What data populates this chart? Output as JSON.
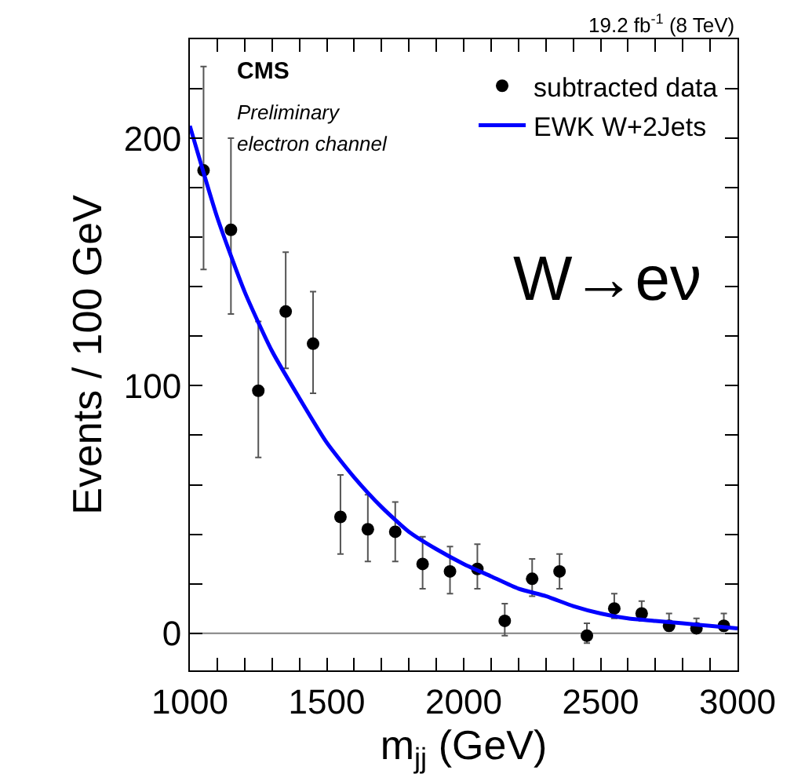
{
  "chart_data": {
    "type": "scatter",
    "xlabel": "m$_{jj}$ (GeV)",
    "ylabel": "Events / 100 GeV",
    "annotations": [
      "19.2 fb$^{-1}$ (8 TeV)",
      "CMS",
      "Preliminary",
      "electron channel",
      "W→eν"
    ],
    "xlim": [
      1000,
      3000
    ],
    "ylim": [
      -15,
      240
    ],
    "xticks": [
      1000,
      {
        "value": 1100,
        "label": null
      },
      {
        "value": 1200,
        "label": null
      },
      {
        "value": 1300,
        "label": null
      },
      {
        "value": 1400,
        "label": null
      },
      1500,
      {
        "value": 1600,
        "label": null
      },
      {
        "value": 1700,
        "label": null
      },
      {
        "value": 1800,
        "label": null
      },
      {
        "value": 1900,
        "label": null
      },
      2000,
      {
        "value": 2100,
        "label": null
      },
      {
        "value": 2200,
        "label": null
      },
      {
        "value": 2300,
        "label": null
      },
      {
        "value": 2400,
        "label": null
      },
      2500,
      {
        "value": 2600,
        "label": null
      },
      {
        "value": 2700,
        "label": null
      },
      {
        "value": 2800,
        "label": null
      },
      {
        "value": 2900,
        "label": null
      },
      3000
    ],
    "yticks": [
      0,
      {
        "value": 20,
        "label": null
      },
      {
        "value": 40,
        "label": null
      },
      {
        "value": 60,
        "label": null
      },
      {
        "value": 80,
        "label": null
      },
      100,
      {
        "value": 120,
        "label": null
      },
      {
        "value": 140,
        "label": null
      },
      {
        "value": 160,
        "label": null
      },
      {
        "value": 180,
        "label": null
      },
      200,
      {
        "value": 220,
        "label": null
      }
    ],
    "grid": false,
    "legend": "top right",
    "marker": "circle",
    "ref_lines": [
      {
        "axis": "y",
        "value": 0,
        "color": "#808080"
      }
    ],
    "series": [
      {
        "name": "subtracted data",
        "color": "#000000",
        "x": [
          1050,
          1150,
          1250,
          1350,
          1450,
          1550,
          1650,
          1750,
          1850,
          1950,
          2050,
          2150,
          2250,
          2350,
          2450,
          2550,
          2650,
          2750,
          2850,
          2950
        ],
        "values": [
          187,
          163,
          98,
          130,
          117,
          47,
          42,
          41,
          28,
          25,
          26,
          5,
          22,
          25,
          -1,
          10,
          8,
          3,
          2,
          3
        ],
        "errors": [
          [
            147,
            229
          ],
          [
            129,
            200
          ],
          [
            71,
            126
          ],
          [
            107,
            154
          ],
          [
            97,
            138
          ],
          [
            32,
            64
          ],
          [
            29,
            56
          ],
          [
            29,
            53
          ],
          [
            18,
            39
          ],
          [
            16,
            35
          ],
          [
            18,
            36
          ],
          [
            -1,
            12
          ],
          [
            15,
            30
          ],
          [
            18,
            32
          ],
          [
            -4,
            4
          ],
          [
            6,
            16
          ],
          [
            5,
            13
          ],
          [
            1,
            8
          ],
          [
            0,
            6
          ],
          [
            1,
            8
          ]
        ]
      },
      {
        "name": "EWK W+2Jets",
        "type": "line",
        "color": "#0000ff",
        "marker": "none",
        "x": [
          1000,
          1100,
          1200,
          1300,
          1400,
          1500,
          1600,
          1700,
          1800,
          1900,
          2000,
          2100,
          2200,
          2300,
          2400,
          2500,
          2600,
          2700,
          2800,
          2900,
          3000
        ],
        "values": [
          205,
          168,
          138,
          114,
          95,
          77,
          63,
          51,
          41,
          34,
          28,
          23,
          18,
          15,
          11,
          8,
          6,
          5,
          4,
          3,
          2
        ]
      }
    ]
  }
}
